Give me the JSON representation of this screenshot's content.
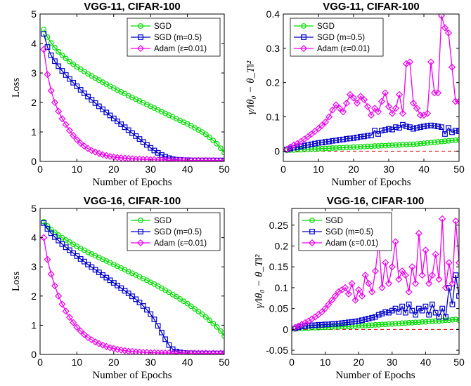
{
  "chart_data": [
    {
      "type": "line",
      "title": "VGG-11, CIFAR-100",
      "xlabel": "Number of Epochs",
      "ylabel": "Loss",
      "xlim": [
        0,
        50
      ],
      "ylim": [
        0,
        5
      ],
      "xticks": [
        "0",
        "10",
        "20",
        "30",
        "40",
        "50"
      ],
      "yticks": [
        "0",
        "1",
        "2",
        "3",
        "4",
        "5"
      ],
      "grid": false,
      "legend_position": "top-right",
      "x": [
        1,
        2,
        3,
        4,
        5,
        6,
        7,
        8,
        9,
        10,
        11,
        12,
        13,
        14,
        15,
        16,
        17,
        18,
        19,
        20,
        21,
        22,
        23,
        24,
        25,
        26,
        27,
        28,
        29,
        30,
        31,
        32,
        33,
        34,
        35,
        36,
        37,
        38,
        39,
        40,
        41,
        42,
        43,
        44,
        45,
        46,
        47,
        48,
        49,
        50
      ],
      "series": [
        {
          "name": "SGD",
          "color": "#00dd00",
          "marker": "circle",
          "values": [
            4.48,
            4.22,
            4.02,
            3.86,
            3.72,
            3.6,
            3.49,
            3.39,
            3.3,
            3.21,
            3.13,
            3.05,
            2.97,
            2.9,
            2.83,
            2.76,
            2.69,
            2.62,
            2.55,
            2.49,
            2.42,
            2.36,
            2.3,
            2.23,
            2.17,
            2.11,
            2.05,
            1.99,
            1.93,
            1.87,
            1.81,
            1.75,
            1.69,
            1.63,
            1.57,
            1.51,
            1.45,
            1.39,
            1.33,
            1.27,
            1.21,
            1.14,
            1.07,
            1.0,
            0.92,
            0.82,
            0.71,
            0.6,
            0.45,
            0.3
          ]
        },
        {
          "name": "SGD (m=0.5)",
          "color": "#0000cc",
          "marker": "square",
          "values": [
            4.33,
            3.88,
            3.6,
            3.4,
            3.23,
            3.07,
            2.93,
            2.8,
            2.67,
            2.55,
            2.43,
            2.31,
            2.2,
            2.09,
            1.98,
            1.87,
            1.77,
            1.66,
            1.56,
            1.46,
            1.36,
            1.26,
            1.16,
            1.06,
            0.96,
            0.86,
            0.76,
            0.66,
            0.56,
            0.46,
            0.37,
            0.29,
            0.22,
            0.16,
            0.11,
            0.08,
            0.06,
            0.05,
            0.04,
            0.04,
            0.03,
            0.03,
            0.03,
            0.03,
            0.03,
            0.03,
            0.03,
            0.03,
            0.03,
            0.03
          ]
        },
        {
          "name": "Adam (ε=0.01)",
          "color": "#ee00ee",
          "marker": "diamond",
          "values": [
            3.8,
            2.95,
            2.4,
            2.0,
            1.7,
            1.45,
            1.25,
            1.05,
            0.88,
            0.74,
            0.62,
            0.52,
            0.44,
            0.37,
            0.32,
            0.27,
            0.23,
            0.2,
            0.17,
            0.15,
            0.13,
            0.12,
            0.11,
            0.1,
            0.09,
            0.08,
            0.08,
            0.07,
            0.07,
            0.06,
            0.06,
            0.05,
            0.05,
            0.05,
            0.04,
            0.04,
            0.04,
            0.04,
            0.04,
            0.03,
            0.03,
            0.03,
            0.03,
            0.03,
            0.03,
            0.03,
            0.03,
            0.02,
            0.02,
            0.02
          ]
        }
      ]
    },
    {
      "type": "line",
      "title": "VGG-11, CIFAR-100",
      "xlabel": "Number of Epochs",
      "ylabel": "γ/‖θ₀ − θ_T‖²",
      "xlim": [
        0,
        50
      ],
      "ylim": [
        -0.03,
        0.4
      ],
      "xticks": [
        "0",
        "10",
        "20",
        "30",
        "40",
        "50"
      ],
      "yticks": [
        "0",
        "0.1",
        "0.2",
        "0.3",
        "0.4"
      ],
      "grid": false,
      "legend_position": "top-left",
      "zero_line": {
        "color": "#dd0000",
        "style": "dashed"
      },
      "x": [
        1,
        2,
        3,
        4,
        5,
        6,
        7,
        8,
        9,
        10,
        11,
        12,
        13,
        14,
        15,
        16,
        17,
        18,
        19,
        20,
        21,
        22,
        23,
        24,
        25,
        26,
        27,
        28,
        29,
        30,
        31,
        32,
        33,
        34,
        35,
        36,
        37,
        38,
        39,
        40,
        41,
        42,
        43,
        44,
        45,
        46,
        47,
        48,
        49,
        50
      ],
      "series": [
        {
          "name": "SGD",
          "color": "#00dd00",
          "marker": "circle",
          "values": [
            0.002,
            0.003,
            0.003,
            0.004,
            0.004,
            0.005,
            0.005,
            0.006,
            0.006,
            0.007,
            0.007,
            0.008,
            0.008,
            0.009,
            0.009,
            0.01,
            0.01,
            0.011,
            0.011,
            0.012,
            0.012,
            0.013,
            0.013,
            0.014,
            0.014,
            0.015,
            0.015,
            0.016,
            0.016,
            0.017,
            0.017,
            0.018,
            0.018,
            0.019,
            0.019,
            0.02,
            0.02,
            0.021,
            0.022,
            0.023,
            0.024,
            0.025,
            0.026,
            0.027,
            0.028,
            0.029,
            0.03,
            0.031,
            0.032,
            0.033
          ]
        },
        {
          "name": "SGD (m=0.5)",
          "color": "#0000cc",
          "marker": "square",
          "values": [
            0.005,
            0.008,
            0.01,
            0.012,
            0.014,
            0.016,
            0.018,
            0.02,
            0.022,
            0.024,
            0.025,
            0.027,
            0.028,
            0.03,
            0.031,
            0.033,
            0.034,
            0.036,
            0.037,
            0.038,
            0.04,
            0.042,
            0.043,
            0.045,
            0.046,
            0.06,
            0.05,
            0.06,
            0.062,
            0.065,
            0.063,
            0.07,
            0.068,
            0.077,
            0.072,
            0.07,
            0.065,
            0.068,
            0.07,
            0.072,
            0.074,
            0.075,
            0.074,
            0.072,
            0.07,
            0.05,
            0.068,
            0.055,
            0.06,
            0.058
          ]
        },
        {
          "name": "Adam (ε=0.01)",
          "color": "#ee00ee",
          "marker": "diamond",
          "values": [
            0.005,
            0.012,
            0.018,
            0.022,
            0.028,
            0.035,
            0.042,
            0.05,
            0.058,
            0.066,
            0.075,
            0.085,
            0.1,
            0.12,
            0.135,
            0.125,
            0.115,
            0.14,
            0.165,
            0.155,
            0.14,
            0.16,
            0.15,
            0.13,
            0.105,
            0.125,
            0.115,
            0.145,
            0.17,
            0.13,
            0.11,
            0.125,
            0.165,
            0.11,
            0.255,
            0.26,
            0.14,
            0.125,
            0.105,
            0.105,
            0.11,
            0.26,
            0.17,
            0.17,
            0.395,
            0.36,
            0.345,
            0.245,
            0.145,
            0.145
          ]
        }
      ]
    },
    {
      "type": "line",
      "title": "VGG-16, CIFAR-100",
      "xlabel": "Number of Epochs",
      "ylabel": "Loss",
      "xlim": [
        0,
        50
      ],
      "ylim": [
        0,
        5
      ],
      "xticks": [
        "0",
        "10",
        "20",
        "30",
        "40",
        "50"
      ],
      "yticks": [
        "0",
        "1",
        "2",
        "3",
        "4",
        "5"
      ],
      "grid": false,
      "legend_position": "top-right",
      "x": [
        1,
        2,
        3,
        4,
        5,
        6,
        7,
        8,
        9,
        10,
        11,
        12,
        13,
        14,
        15,
        16,
        17,
        18,
        19,
        20,
        21,
        22,
        23,
        24,
        25,
        26,
        27,
        28,
        29,
        30,
        31,
        32,
        33,
        34,
        35,
        36,
        37,
        38,
        39,
        40,
        41,
        42,
        43,
        44,
        45,
        46,
        47,
        48,
        49,
        50
      ],
      "series": [
        {
          "name": "SGD",
          "color": "#00dd00",
          "marker": "circle",
          "values": [
            4.55,
            4.4,
            4.28,
            4.18,
            4.09,
            4.0,
            3.92,
            3.85,
            3.77,
            3.7,
            3.63,
            3.57,
            3.5,
            3.44,
            3.38,
            3.32,
            3.26,
            3.2,
            3.14,
            3.08,
            3.02,
            2.96,
            2.9,
            2.84,
            2.78,
            2.72,
            2.66,
            2.6,
            2.54,
            2.47,
            2.41,
            2.34,
            2.27,
            2.2,
            2.13,
            2.05,
            1.98,
            1.9,
            1.82,
            1.74,
            1.65,
            1.56,
            1.47,
            1.38,
            1.28,
            1.17,
            1.06,
            0.94,
            0.8,
            0.63
          ]
        },
        {
          "name": "SGD (m=0.5)",
          "color": "#0000cc",
          "marker": "square",
          "values": [
            4.5,
            4.3,
            4.15,
            4.02,
            3.9,
            3.78,
            3.67,
            3.57,
            3.47,
            3.37,
            3.27,
            3.18,
            3.08,
            2.99,
            2.9,
            2.81,
            2.72,
            2.63,
            2.54,
            2.45,
            2.36,
            2.27,
            2.18,
            2.09,
            1.99,
            1.89,
            1.78,
            1.66,
            1.53,
            1.38,
            1.2,
            0.98,
            0.75,
            0.52,
            0.32,
            0.18,
            0.1,
            0.07,
            0.05,
            0.04,
            0.04,
            0.03,
            0.03,
            0.03,
            0.03,
            0.03,
            0.03,
            0.03,
            0.03,
            0.03
          ]
        },
        {
          "name": "Adam (ε=0.01)",
          "color": "#ee00ee",
          "marker": "diamond",
          "values": [
            4.0,
            3.25,
            2.75,
            2.35,
            2.0,
            1.72,
            1.48,
            1.27,
            1.09,
            0.93,
            0.8,
            0.68,
            0.58,
            0.5,
            0.43,
            0.37,
            0.32,
            0.27,
            0.23,
            0.2,
            0.17,
            0.15,
            0.13,
            0.11,
            0.1,
            0.09,
            0.08,
            0.07,
            0.07,
            0.06,
            0.06,
            0.05,
            0.05,
            0.05,
            0.05,
            0.04,
            0.04,
            0.04,
            0.04,
            0.04,
            0.04,
            0.04,
            0.04,
            0.04,
            0.04,
            0.03,
            0.04,
            0.03,
            0.04,
            0.04
          ]
        }
      ]
    },
    {
      "type": "line",
      "title": "VGG-16, CIFAR-100",
      "xlabel": "Number of Epochs",
      "ylabel": "γ/‖θ₀ − θ_T‖²",
      "xlim": [
        0,
        50
      ],
      "ylim": [
        -0.06,
        0.29
      ],
      "xticks": [
        "0",
        "10",
        "20",
        "30",
        "40",
        "50"
      ],
      "yticks": [
        "-0.05",
        "0",
        "0.05",
        "0.1",
        "0.15",
        "0.2",
        "0.25"
      ],
      "grid": false,
      "legend_position": "top-left",
      "zero_line": {
        "color": "#dd0000",
        "style": "dashed"
      },
      "x": [
        1,
        2,
        3,
        4,
        5,
        6,
        7,
        8,
        9,
        10,
        11,
        12,
        13,
        14,
        15,
        16,
        17,
        18,
        19,
        20,
        21,
        22,
        23,
        24,
        25,
        26,
        27,
        28,
        29,
        30,
        31,
        32,
        33,
        34,
        35,
        36,
        37,
        38,
        39,
        40,
        41,
        42,
        43,
        44,
        45,
        46,
        47,
        48,
        49,
        50
      ],
      "series": [
        {
          "name": "SGD",
          "color": "#00dd00",
          "marker": "circle",
          "values": [
            0.001,
            0.002,
            0.002,
            0.003,
            0.003,
            0.004,
            0.004,
            0.004,
            0.005,
            0.005,
            0.005,
            0.006,
            0.006,
            0.006,
            0.007,
            0.007,
            0.007,
            0.008,
            0.008,
            0.009,
            0.009,
            0.009,
            0.01,
            0.01,
            0.011,
            0.011,
            0.012,
            0.012,
            0.013,
            0.013,
            0.014,
            0.014,
            0.015,
            0.015,
            0.016,
            0.016,
            0.017,
            0.017,
            0.018,
            0.018,
            0.019,
            0.019,
            0.02,
            0.02,
            0.021,
            0.022,
            0.022,
            0.023,
            0.024,
            0.022
          ]
        },
        {
          "name": "SGD (m=0.5)",
          "color": "#0000cc",
          "marker": "square",
          "values": [
            0.002,
            0.005,
            0.007,
            0.008,
            0.009,
            0.01,
            0.01,
            0.011,
            0.011,
            0.012,
            0.012,
            0.013,
            0.013,
            0.014,
            0.015,
            0.016,
            0.017,
            0.018,
            0.019,
            0.02,
            0.022,
            0.024,
            0.026,
            0.028,
            0.03,
            0.035,
            0.038,
            0.042,
            0.04,
            0.045,
            0.05,
            0.042,
            0.055,
            0.04,
            0.06,
            0.045,
            0.035,
            0.05,
            0.045,
            0.055,
            0.035,
            0.06,
            0.04,
            0.03,
            0.05,
            0.03,
            0.1,
            0.06,
            0.13,
            0.08
          ]
        },
        {
          "name": "Adam (ε=0.01)",
          "color": "#ee00ee",
          "marker": "diamond",
          "values": [
            0.005,
            0.008,
            0.012,
            0.016,
            0.02,
            0.025,
            0.03,
            0.036,
            0.042,
            0.05,
            0.06,
            0.07,
            0.08,
            0.09,
            0.095,
            0.1,
            0.085,
            0.11,
            0.07,
            0.095,
            0.08,
            0.13,
            0.11,
            0.09,
            0.14,
            0.21,
            0.1,
            0.16,
            0.11,
            0.15,
            0.21,
            0.12,
            0.14,
            0.13,
            0.09,
            0.15,
            0.11,
            0.23,
            0.13,
            0.19,
            0.11,
            0.13,
            0.18,
            0.12,
            0.265,
            0.1,
            0.16,
            0.11,
            0.26,
            0.16
          ]
        }
      ]
    }
  ]
}
